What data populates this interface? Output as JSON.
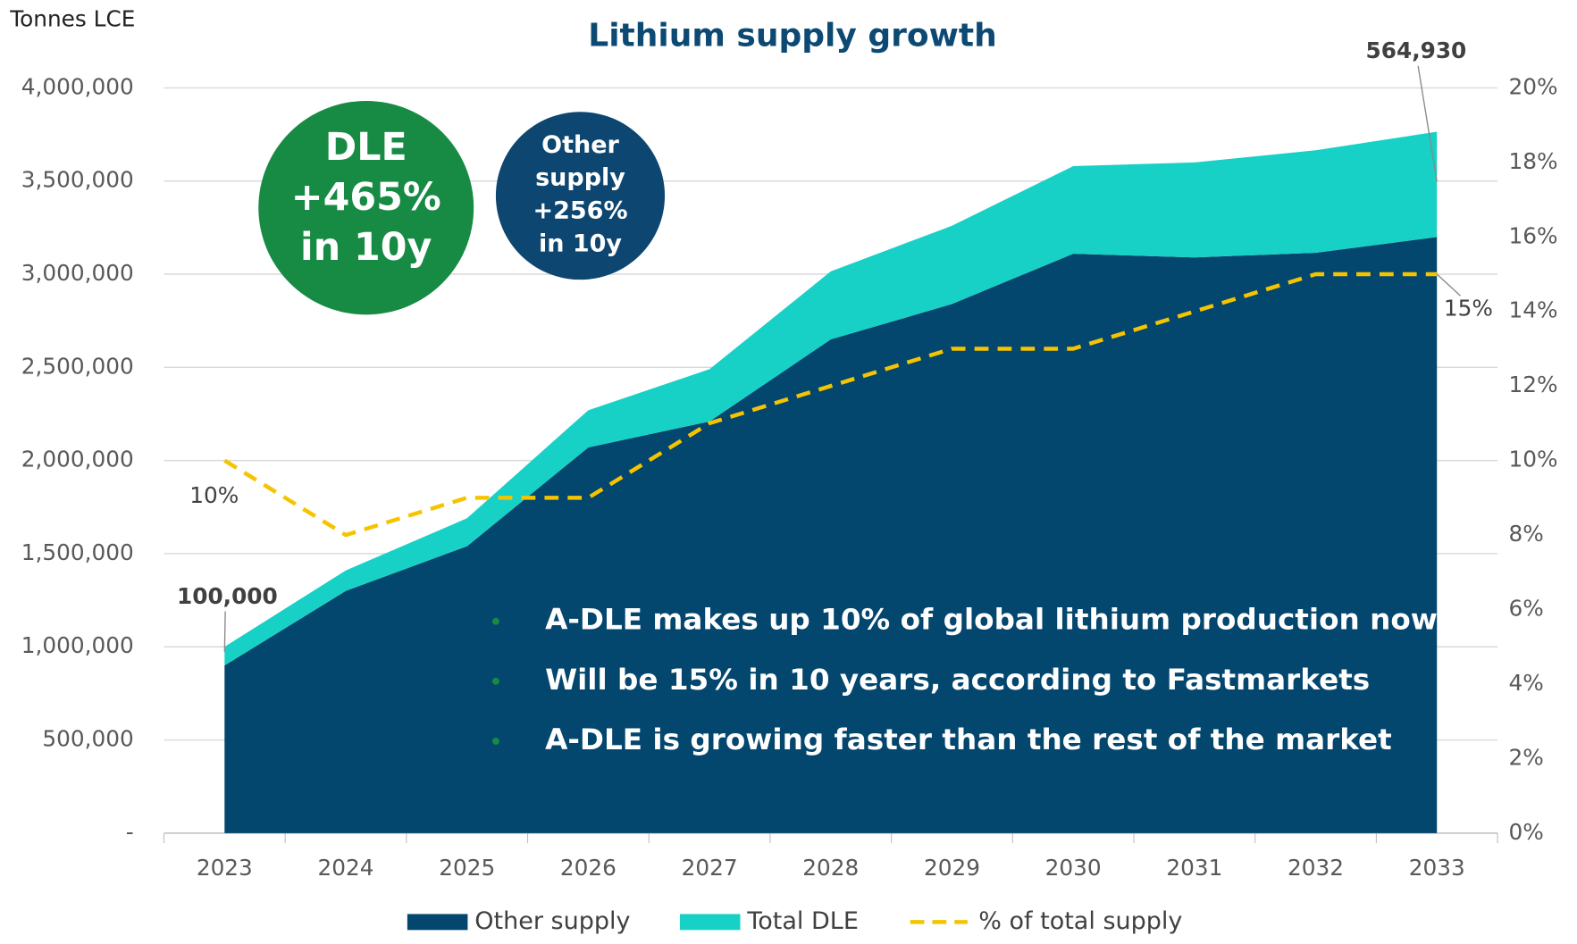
{
  "chart_data": {
    "type": "stacked_area",
    "title": "Lithium supply growth",
    "y_label": "Tonnes LCE",
    "categories": [
      "2023",
      "2024",
      "2025",
      "2026",
      "2027",
      "2028",
      "2029",
      "2030",
      "2031",
      "2032",
      "2033"
    ],
    "series": [
      {
        "name": "Other supply",
        "color": "#03466e",
        "values": [
          900000,
          1300000,
          1540000,
          2070000,
          2210000,
          2650000,
          2840000,
          3110000,
          3090000,
          3115000,
          3200000
        ]
      },
      {
        "name": "Total DLE",
        "color": "#17d1c6",
        "values": [
          100000,
          110000,
          150000,
          200000,
          280000,
          365000,
          420000,
          470000,
          510000,
          550000,
          564930
        ],
        "value_labels": [
          "100,000",
          null,
          null,
          null,
          null,
          null,
          null,
          null,
          null,
          null,
          "564,930"
        ]
      },
      {
        "name": "% of total supply",
        "color": "#f5c400",
        "axis": "y2",
        "style": "dashed",
        "values": [
          10,
          8,
          9,
          9,
          11,
          12,
          13,
          13,
          14,
          15,
          15
        ],
        "value_labels": [
          "10%",
          null,
          null,
          null,
          null,
          null,
          null,
          null,
          null,
          null,
          "15%"
        ]
      }
    ],
    "ylim": [
      0,
      4000000
    ],
    "yticks": [
      {
        "value": 0,
        "label": "-"
      },
      {
        "value": 500000,
        "label": "500,000"
      },
      {
        "value": 1000000,
        "label": "1,000,000"
      },
      {
        "value": 1500000,
        "label": "1,500,000"
      },
      {
        "value": 2000000,
        "label": "2,000,000"
      },
      {
        "value": 2500000,
        "label": "2,500,000"
      },
      {
        "value": 3000000,
        "label": "3,000,000"
      },
      {
        "value": 3500000,
        "label": "3,500,000"
      },
      {
        "value": 4000000,
        "label": "4,000,000"
      }
    ],
    "y2lim": [
      0,
      20
    ],
    "y2ticks": [
      {
        "value": 0,
        "label": "0%"
      },
      {
        "value": 2,
        "label": "2%"
      },
      {
        "value": 4,
        "label": "4%"
      },
      {
        "value": 6,
        "label": "6%"
      },
      {
        "value": 8,
        "label": "8%"
      },
      {
        "value": 10,
        "label": "10%"
      },
      {
        "value": 12,
        "label": "12%"
      },
      {
        "value": 14,
        "label": "14%"
      },
      {
        "value": 16,
        "label": "16%"
      },
      {
        "value": 18,
        "label": "18%"
      },
      {
        "value": 20,
        "label": "20%"
      }
    ],
    "grid": true,
    "legend": "bottom",
    "annotations": {
      "dle_circle": [
        "DLE",
        "+465%",
        "in 10y"
      ],
      "other_circle": [
        "Other",
        "supply",
        "+256%",
        "in 10y"
      ],
      "bullets": [
        "A-DLE makes up 10% of global lithium production now",
        "Will be 15% in 10 years, according to Fastmarkets",
        "A-DLE is growing faster than the rest of the market"
      ]
    }
  }
}
